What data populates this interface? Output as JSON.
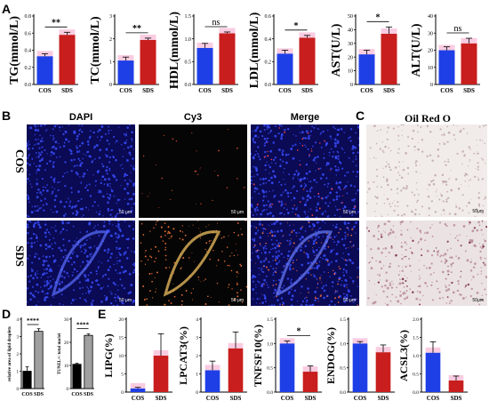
{
  "panels": {
    "A": {
      "letter": "A",
      "charts": [
        {
          "ylabel": "TG(mmol/L)",
          "ticks": [
            "0.0",
            "0.2",
            "0.4",
            "0.6",
            "0.8"
          ],
          "ylim": [
            0,
            0.8
          ],
          "values": [
            0.33,
            0.58
          ],
          "err": [
            0.03,
            0.03
          ],
          "sig": "**"
        },
        {
          "ylabel": "TC(mmol/L)",
          "ticks": [
            "0",
            "1",
            "2",
            "3"
          ],
          "ylim": [
            0,
            3
          ],
          "values": [
            1.05,
            1.95
          ],
          "err": [
            0.15,
            0.08
          ],
          "sig": "**"
        },
        {
          "ylabel": "HDL(mmol/L)",
          "ticks": [
            "0.0",
            "0.5",
            "1.0",
            "1.5"
          ],
          "ylim": [
            0,
            1.5
          ],
          "values": [
            0.8,
            1.12
          ],
          "err": [
            0.1,
            0.03
          ],
          "sig": "ns"
        },
        {
          "ylabel": "LDL(mmol/L)",
          "ticks": [
            "0.0",
            "0.2",
            "0.4",
            "0.6"
          ],
          "ylim": [
            0,
            0.6
          ],
          "values": [
            0.27,
            0.41
          ],
          "err": [
            0.03,
            0.02
          ],
          "sig": "*"
        },
        {
          "ylabel": "AST(U/L)",
          "ticks": [
            "0",
            "10",
            "20",
            "30",
            "40",
            "50"
          ],
          "ylim": [
            0,
            50
          ],
          "values": [
            22,
            37
          ],
          "err": [
            3,
            5
          ],
          "sig": "*"
        },
        {
          "ylabel": "ALT(U/L)",
          "ticks": [
            "0",
            "10",
            "20",
            "30",
            "40"
          ],
          "ylim": [
            0,
            40
          ],
          "values": [
            20,
            24
          ],
          "err": [
            2,
            3
          ],
          "sig": "ns"
        }
      ],
      "categories": [
        "COS",
        "SDS"
      ]
    },
    "B": {
      "letter": "B",
      "columns": [
        "DAPI",
        "Cy3",
        "Merge"
      ],
      "rows": [
        "COS",
        "SDS"
      ],
      "scalebar": "50 μm"
    },
    "C": {
      "letter": "C",
      "title": "Oil Red O",
      "scalebar": "50μm"
    },
    "D": {
      "letter": "D",
      "charts": [
        {
          "ylabel": "relative area of lipid droplets",
          "ticks": [
            "0",
            "1",
            "2",
            "3",
            "4"
          ],
          "ylim": [
            0,
            4
          ],
          "values": [
            1.0,
            3.3
          ],
          "err": [
            0.25,
            0.15
          ],
          "sig": "****"
        },
        {
          "ylabel": "TUNEL+/ total nuclei",
          "ticks": [
            "0",
            "10",
            "20",
            "30"
          ],
          "ylim": [
            0,
            30
          ],
          "values": [
            10.5,
            23
          ],
          "err": [
            0.4,
            0.6
          ],
          "sig": "****"
        }
      ],
      "categories": [
        "COS",
        "SDS"
      ]
    },
    "E": {
      "letter": "E",
      "charts": [
        {
          "ylabel": "LIPG(%)",
          "ticks": [
            "0",
            "5",
            "10",
            "15",
            "20"
          ],
          "ylim": [
            0,
            20
          ],
          "values": [
            1,
            10
          ],
          "err": [
            0.3,
            6
          ],
          "sig": ""
        },
        {
          "ylabel": "LPCAT3(%)",
          "ticks": [
            "0",
            "1",
            "2",
            "3",
            "4"
          ],
          "ylim": [
            0,
            4
          ],
          "values": [
            1.2,
            2.4
          ],
          "err": [
            0.5,
            0.9
          ],
          "sig": ""
        },
        {
          "ylabel": "TNFSF10(%)",
          "ticks": [
            "0.0",
            "0.5",
            "1.0",
            "1.5"
          ],
          "ylim": [
            0,
            1.5
          ],
          "values": [
            1.0,
            0.42
          ],
          "err": [
            0.05,
            0.12
          ],
          "sig": "*"
        },
        {
          "ylabel": "ENDOG(%)",
          "ticks": [
            "0.0",
            "0.5",
            "1.0",
            "1.5"
          ],
          "ylim": [
            0,
            1.5
          ],
          "values": [
            1.0,
            0.82
          ],
          "err": [
            0.04,
            0.15
          ],
          "sig": ""
        },
        {
          "ylabel": "ACSL3(%)",
          "ticks": [
            "0.0",
            "0.5",
            "1.0",
            "1.5",
            "2.0"
          ],
          "ylim": [
            0,
            2
          ],
          "values": [
            1.08,
            0.32
          ],
          "err": [
            0.3,
            0.12
          ],
          "sig": ""
        }
      ],
      "categories": [
        "COS",
        "SDS"
      ]
    }
  },
  "colors": {
    "cos_blue": "#1f3fe6",
    "sds_red": "#c81e1e",
    "pink": "#f4a3c8",
    "d_black": "#000000",
    "d_grey": "#a0a0a0"
  }
}
